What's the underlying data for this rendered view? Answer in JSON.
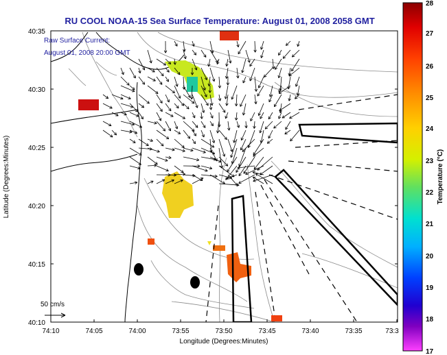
{
  "title": "RU COOL  NOAA-15  Sea Surface Temperature:  August 01, 2008 2058 GMT",
  "legend": {
    "label": "Raw Surface Current:",
    "time": "August 01, 2008 20:00 GMT",
    "scale_label": "50 cm/s"
  },
  "axes": {
    "xlabel": "Longitude (Degrees:Minutes)",
    "ylabel": "Latitude (Degrees:Minutes)",
    "xticks": [
      "74:10",
      "74:05",
      "74:00",
      "73:55",
      "73:50",
      "73:45",
      "73:40",
      "73:35",
      "73:3"
    ],
    "yticks": [
      "40:35",
      "40:30",
      "40:25",
      "40:20",
      "40:15",
      "40:10"
    ]
  },
  "colorbar": {
    "label": "Temperature (°C)",
    "ticks": [
      "28",
      "27",
      "26",
      "25",
      "24",
      "23",
      "22",
      "21",
      "20",
      "19",
      "18",
      "17"
    ],
    "min": 17,
    "max": 28
  },
  "colors": {
    "title": "#1f1f9f",
    "legend_text": "#1f1f9f"
  }
}
